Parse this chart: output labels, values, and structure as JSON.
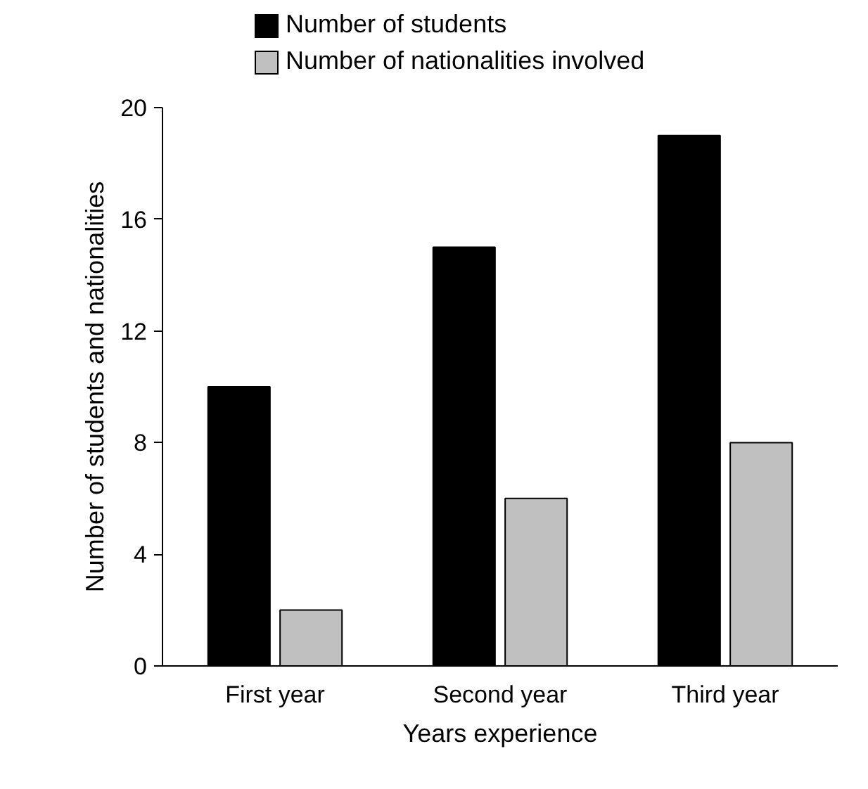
{
  "chart_data": {
    "type": "bar",
    "xlabel": "Years experience",
    "ylabel": "Number of students and nationalities",
    "categories": [
      "First year",
      "Second year",
      "Third year"
    ],
    "series": [
      {
        "name": "Number of students",
        "color": "#000000",
        "values": [
          10,
          15,
          19
        ]
      },
      {
        "name": "Number of nationalities involved",
        "color": "#c0c0c0",
        "values": [
          2,
          6,
          8
        ]
      }
    ],
    "ylim": [
      0,
      20
    ],
    "yticks": [
      0,
      4,
      8,
      12,
      16,
      20
    ],
    "grid": false,
    "legend": "top"
  }
}
